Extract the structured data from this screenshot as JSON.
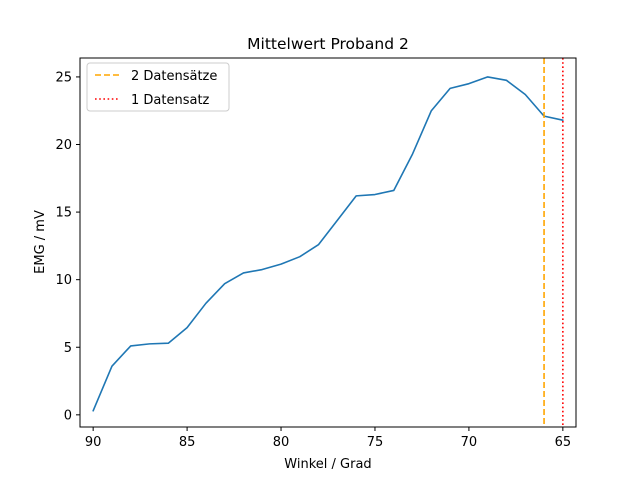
{
  "chart_data": {
    "type": "line",
    "title": "Mittelwert Proband 2",
    "xlabel": "Winkel / Grad",
    "ylabel": "EMG / mV",
    "xlim": [
      90.7,
      64.3
    ],
    "ylim": [
      -0.9,
      26.4
    ],
    "x_inverted": true,
    "xticks": [
      90,
      85,
      80,
      75,
      70,
      65
    ],
    "yticks": [
      0,
      5,
      10,
      15,
      20,
      25
    ],
    "grid": false,
    "legend_position": "top-left",
    "series": [
      {
        "color": "#1f77b4",
        "x": [
          90,
          89,
          88,
          87,
          86,
          85,
          84,
          83,
          82,
          81,
          80,
          79,
          78,
          77,
          76,
          75,
          74,
          73,
          72,
          71,
          70,
          69,
          68,
          67,
          66,
          65
        ],
        "y": [
          0.3,
          3.6,
          5.1,
          5.25,
          5.3,
          6.45,
          8.25,
          9.7,
          10.5,
          10.75,
          11.15,
          11.7,
          12.6,
          14.4,
          16.2,
          16.3,
          16.6,
          19.3,
          22.5,
          24.15,
          24.5,
          25.0,
          24.75,
          23.7,
          22.1,
          21.8
        ]
      }
    ],
    "vlines": [
      {
        "x": 66.0,
        "label": "2 Datensätze",
        "color": "#ffa500",
        "style": "dashed"
      },
      {
        "x": 65.0,
        "label": "1 Datensatz",
        "color": "#ff0000",
        "style": "dotted"
      }
    ]
  }
}
